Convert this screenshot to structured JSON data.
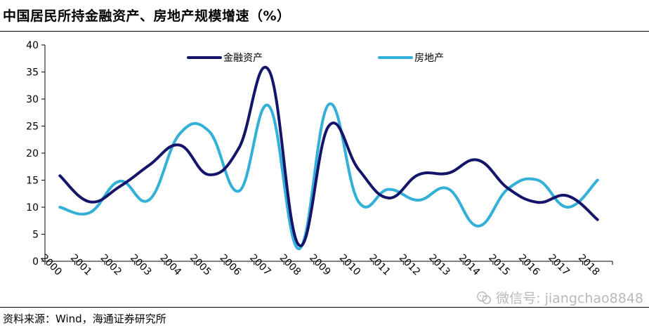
{
  "header": {
    "title": "中国居民所持金融资产、房地产规模增速（%）"
  },
  "footer": {
    "source": "资料来源：Wind，海通证券研究所"
  },
  "watermark": {
    "text": "微信号: jiangchao8848"
  },
  "chart_data": {
    "type": "line",
    "title": "中国居民所持金融资产、房地产规模增速（%）",
    "xlabel": "",
    "ylabel": "",
    "categories": [
      "2000",
      "2001",
      "2002",
      "2003",
      "2004",
      "2005",
      "2006",
      "2007",
      "2008",
      "2009",
      "2010",
      "2011",
      "2012",
      "2013",
      "2014",
      "2015",
      "2016",
      "2017",
      "2018"
    ],
    "ylim": [
      0,
      40
    ],
    "yticks": [
      0,
      5,
      10,
      15,
      20,
      25,
      30,
      35,
      40
    ],
    "legend_position": "top",
    "series": [
      {
        "name": "金融资产",
        "color": "#14146b",
        "values": [
          15.8,
          11.0,
          13.8,
          17.8,
          21.5,
          16.0,
          21.0,
          35.3,
          3.0,
          25.0,
          17.0,
          11.7,
          16.0,
          16.3,
          18.7,
          13.5,
          10.9,
          12.1,
          7.7
        ]
      },
      {
        "name": "房地产",
        "color": "#33b0d8",
        "values": [
          10.0,
          9.0,
          14.8,
          11.4,
          23.5,
          24.0,
          13.0,
          28.7,
          2.3,
          29.0,
          11.0,
          13.3,
          11.3,
          13.4,
          6.5,
          13.4,
          15.0,
          10.0,
          15.0
        ]
      }
    ]
  }
}
